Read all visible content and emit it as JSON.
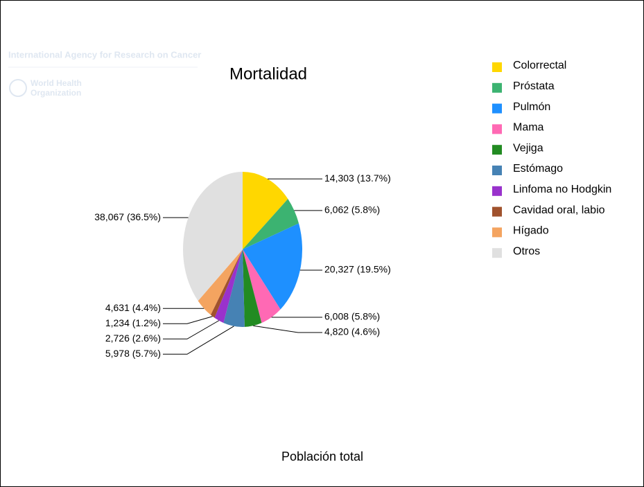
{
  "chart_data": {
    "type": "pie",
    "title": "Mortalidad",
    "subtitle": "Población total",
    "watermark": {
      "agency": "International Agency for Research on Cancer",
      "org_line1": "World Health",
      "org_line2": "Organization"
    },
    "categories": [
      "Colorrectal",
      "Próstata",
      "Pulmón",
      "Mama",
      "Vejiga",
      "Estómago",
      "Linfoma no Hodgkin",
      "Cavidad oral, labio",
      "Hígado",
      "Otros"
    ],
    "values": [
      14303,
      6062,
      20327,
      6008,
      4820,
      5978,
      2726,
      1234,
      4631,
      38067
    ],
    "value_labels": [
      "14,303 (13.7%)",
      "6,062 (5.8%)",
      "20,327 (19.5%)",
      "6,008 (5.8%)",
      "4,820 (4.6%)",
      "5,978 (5.7%)",
      "2,726 (2.6%)",
      "1,234 (1.2%)",
      "4,631 (4.4%)",
      "38,067 (36.5%)"
    ],
    "colors": [
      "#ffd700",
      "#3cb371",
      "#1e90ff",
      "#ff69b4",
      "#228b22",
      "#4682b4",
      "#9932cc",
      "#a0522d",
      "#f4a460",
      "#e0e0e0"
    ],
    "legend": "top-right"
  }
}
